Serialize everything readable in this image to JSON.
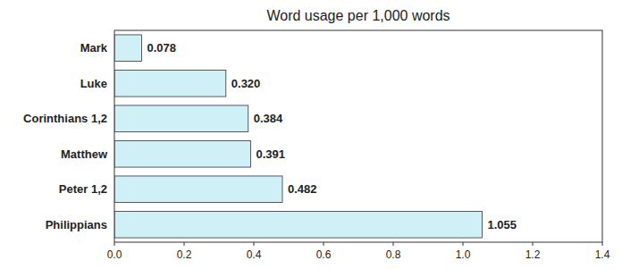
{
  "chart_data": {
    "type": "bar",
    "orientation": "horizontal",
    "title": "Word usage per 1,000 words",
    "categories": [
      "Philippians",
      "Peter 1,2",
      "Matthew",
      "Corinthians 1,2",
      "Luke",
      "Mark"
    ],
    "values": [
      1.055,
      0.482,
      0.391,
      0.384,
      0.32,
      0.078
    ],
    "value_labels": [
      "1.055",
      "0.482",
      "0.391",
      "0.384",
      "0.320",
      "0.078"
    ],
    "data_labels": true,
    "color": "#d0f0f8",
    "xlim": [
      0,
      1.4
    ],
    "xticks": [
      {
        "value": 0,
        "label": "0.0"
      },
      0.2,
      0.4,
      0.6,
      0.8,
      {
        "value": 1,
        "label": "1.0"
      },
      1.2,
      1.4
    ],
    "grid": false
  }
}
